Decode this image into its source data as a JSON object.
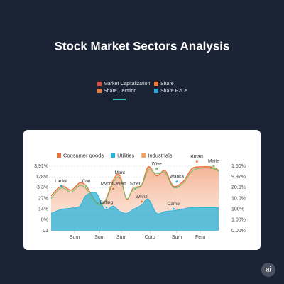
{
  "chart_data": {
    "type": "area",
    "title": "Stock Market Sectors Analysis",
    "header_legend": [
      {
        "name": "Market Capitalization",
        "color": "#e2483f"
      },
      {
        "name": "Share",
        "color": "#f07a3a"
      },
      {
        "name": "Share Cecttion",
        "color": "#f07a3a"
      },
      {
        "name": "Share P2Ce",
        "color": "#2aa8d8"
      }
    ],
    "x": [
      0,
      6,
      12,
      17,
      21,
      27,
      32,
      37,
      41,
      45,
      49,
      54,
      58,
      63,
      68,
      73,
      79,
      84,
      90,
      97,
      100
    ],
    "xlim": [
      0,
      100
    ],
    "xticks": [
      {
        "value": 14,
        "label": "Sum"
      },
      {
        "value": 29,
        "label": "Sum"
      },
      {
        "value": 42,
        "label": "Sum"
      },
      {
        "value": 59,
        "label": "Corp"
      },
      {
        "value": 75,
        "label": "Sum"
      },
      {
        "value": 89,
        "label": "Fem"
      }
    ],
    "ylim": [
      0,
      100
    ],
    "y_labels": [
      "3.91%",
      "128%",
      "3.3%",
      "27%",
      "14%",
      "0%",
      "01"
    ],
    "y2_labels": [
      "1.50%",
      "9.97%",
      "20.0%",
      "10.0%",
      "100%",
      "1.00%",
      "0.00%"
    ],
    "grid": true,
    "series": [
      {
        "name": "Consumer goods",
        "color": "#e8743b",
        "fill": true,
        "values": [
          54,
          69,
          63,
          74,
          69,
          44,
          45,
          78,
          86,
          49,
          66,
          71,
          99,
          85,
          93,
          69,
          77,
          96,
          99,
          98,
          93
        ]
      },
      {
        "name": "Utilities",
        "color": "#2bb3d9",
        "fill": true,
        "values": [
          27,
          33,
          35,
          38,
          55,
          58,
          33,
          38,
          30,
          27,
          33,
          40,
          49,
          27,
          30,
          31,
          34,
          36,
          36,
          36,
          36
        ]
      },
      {
        "name": "Industrials",
        "color": "#f0a060",
        "line_color": "#6cc070",
        "fill": false,
        "values": [
          50,
          66,
          60,
          70,
          65,
          42,
          44,
          74,
          82,
          50,
          64,
          70,
          94,
          88,
          90,
          67,
          74,
          92,
          97,
          96,
          92
        ]
      }
    ],
    "annotations": [
      {
        "text": "Lanke",
        "x": 6,
        "y": 69,
        "color": "#2bb3d9"
      },
      {
        "text": "Con",
        "x": 21,
        "y": 69,
        "color": "#6cc070"
      },
      {
        "text": "Mvor Cavert",
        "x": 37,
        "y": 65,
        "color": "#e8743b"
      },
      {
        "text": "Mant",
        "x": 41,
        "y": 82,
        "color": "#e8743b"
      },
      {
        "text": "Brifing",
        "x": 33,
        "y": 36,
        "color": "#2bb3d9"
      },
      {
        "text": "Sinet",
        "x": 50,
        "y": 65,
        "color": "#6cc070"
      },
      {
        "text": "Whnz",
        "x": 54,
        "y": 45,
        "color": "#e8743b"
      },
      {
        "text": "Wive",
        "x": 63,
        "y": 96,
        "color": "#6cc070"
      },
      {
        "text": "Wanka",
        "x": 75,
        "y": 76,
        "color": "#2bb3d9"
      },
      {
        "text": "Dame",
        "x": 73,
        "y": 34,
        "color": "#2bb3d9"
      },
      {
        "text": "Bmals",
        "x": 87,
        "y": 107,
        "color": "#e8743b"
      },
      {
        "text": "Maite",
        "x": 97,
        "y": 100,
        "color": "#6cc070"
      }
    ],
    "badge": "ai"
  }
}
